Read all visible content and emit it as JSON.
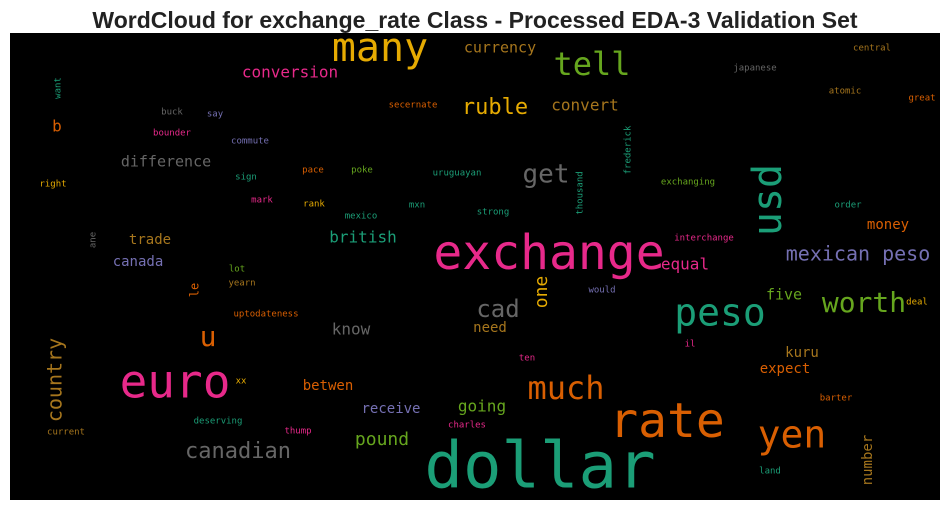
{
  "chart_data": {
    "type": "wordcloud",
    "title": "WordCloud for exchange_rate Class - Processed EDA-3 Validation Set",
    "background": "#000000",
    "words": [
      {
        "text": "many",
        "color": "#e6ab02"
      },
      {
        "text": "tell",
        "color": "#66a61e"
      },
      {
        "text": "currency",
        "color": "#a6761d"
      },
      {
        "text": "conversion",
        "color": "#e7298a"
      },
      {
        "text": "central",
        "color": "#a6761d"
      },
      {
        "text": "japanese",
        "color": "#666666"
      },
      {
        "text": "want",
        "color": "#1b9e77"
      },
      {
        "text": "atomic",
        "color": "#a6761d"
      },
      {
        "text": "great",
        "color": "#d95f02"
      },
      {
        "text": "ruble",
        "color": "#e6ab02"
      },
      {
        "text": "convert",
        "color": "#a6761d"
      },
      {
        "text": "secernate",
        "color": "#d95f02"
      },
      {
        "text": "buck",
        "color": "#666666"
      },
      {
        "text": "say",
        "color": "#7570b3"
      },
      {
        "text": "bounder",
        "color": "#e7298a"
      },
      {
        "text": "b",
        "color": "#d95f02"
      },
      {
        "text": "commute",
        "color": "#7570b3"
      },
      {
        "text": "frederick",
        "color": "#1b9e77"
      },
      {
        "text": "difference",
        "color": "#666666"
      },
      {
        "text": "get",
        "color": "#666666"
      },
      {
        "text": "usd",
        "color": "#1b9e77"
      },
      {
        "text": "thousand",
        "color": "#1b9e77"
      },
      {
        "text": "right",
        "color": "#e6ab02"
      },
      {
        "text": "sign",
        "color": "#1b9e77"
      },
      {
        "text": "pace",
        "color": "#d95f02"
      },
      {
        "text": "poke",
        "color": "#66a61e"
      },
      {
        "text": "uruguayan",
        "color": "#1b9e77"
      },
      {
        "text": "exchanging",
        "color": "#66a61e"
      },
      {
        "text": "mark",
        "color": "#e7298a"
      },
      {
        "text": "rank",
        "color": "#e6ab02"
      },
      {
        "text": "mxn",
        "color": "#1b9e77"
      },
      {
        "text": "strong",
        "color": "#1b9e77"
      },
      {
        "text": "mexico",
        "color": "#1b9e77"
      },
      {
        "text": "order",
        "color": "#1b9e77"
      },
      {
        "text": "money",
        "color": "#d95f02"
      },
      {
        "text": "interchange",
        "color": "#e7298a"
      },
      {
        "text": "trade",
        "color": "#a6761d"
      },
      {
        "text": "british",
        "color": "#1b9e77"
      },
      {
        "text": "ane",
        "color": "#666666"
      },
      {
        "text": "exchange",
        "color": "#e7298a"
      },
      {
        "text": "canada",
        "color": "#7570b3"
      },
      {
        "text": "mexican peso",
        "color": "#7570b3"
      },
      {
        "text": "equal",
        "color": "#e7298a"
      },
      {
        "text": "lot",
        "color": "#66a61e"
      },
      {
        "text": "le",
        "color": "#d95f02"
      },
      {
        "text": "yearn",
        "color": "#a6761d"
      },
      {
        "text": "would",
        "color": "#7570b3"
      },
      {
        "text": "one",
        "color": "#e6ab02"
      },
      {
        "text": "cad",
        "color": "#666666"
      },
      {
        "text": "five",
        "color": "#66a61e"
      },
      {
        "text": "worth",
        "color": "#66a61e"
      },
      {
        "text": "deal",
        "color": "#e6ab02"
      },
      {
        "text": "uptodateness",
        "color": "#d95f02"
      },
      {
        "text": "peso",
        "color": "#1b9e77"
      },
      {
        "text": "u",
        "color": "#d95f02"
      },
      {
        "text": "know",
        "color": "#666666"
      },
      {
        "text": "need",
        "color": "#a6761d"
      },
      {
        "text": "il",
        "color": "#e7298a"
      },
      {
        "text": "country",
        "color": "#a6761d"
      },
      {
        "text": "ten",
        "color": "#e7298a"
      },
      {
        "text": "kuru",
        "color": "#a6761d"
      },
      {
        "text": "euro",
        "color": "#e7298a"
      },
      {
        "text": "much",
        "color": "#d95f02"
      },
      {
        "text": "expect",
        "color": "#d95f02"
      },
      {
        "text": "xx",
        "color": "#e6ab02"
      },
      {
        "text": "betwen",
        "color": "#d95f02"
      },
      {
        "text": "rate",
        "color": "#d95f02"
      },
      {
        "text": "barter",
        "color": "#d95f02"
      },
      {
        "text": "receive",
        "color": "#7570b3"
      },
      {
        "text": "going",
        "color": "#66a61e"
      },
      {
        "text": "deserving",
        "color": "#1b9e77"
      },
      {
        "text": "pound",
        "color": "#66a61e"
      },
      {
        "text": "charles",
        "color": "#e7298a"
      },
      {
        "text": "thump",
        "color": "#e7298a"
      },
      {
        "text": "yen",
        "color": "#d95f02"
      },
      {
        "text": "current",
        "color": "#a6761d"
      },
      {
        "text": "canadian",
        "color": "#666666"
      },
      {
        "text": "number",
        "color": "#a6761d"
      },
      {
        "text": "land",
        "color": "#1b9e77"
      },
      {
        "text": "dollar",
        "color": "#1b9e77"
      }
    ]
  }
}
